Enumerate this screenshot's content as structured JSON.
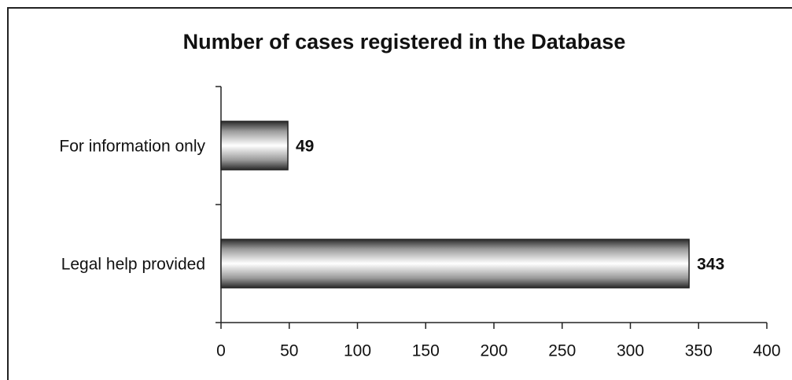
{
  "chart_data": {
    "type": "bar",
    "orientation": "horizontal",
    "title": "Number of cases registered in the Database",
    "categories": [
      "For information only",
      "Legal help provided"
    ],
    "values": [
      49,
      343
    ],
    "xlim": [
      0,
      400
    ],
    "xticks": [
      0,
      50,
      100,
      150,
      200,
      250,
      300,
      350,
      400
    ],
    "grid": false
  }
}
